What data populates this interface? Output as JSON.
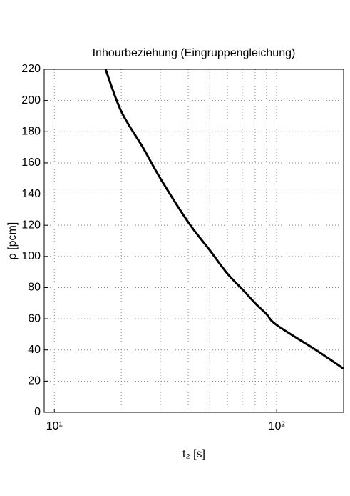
{
  "chart_data": {
    "type": "line",
    "title": "Inhourbeziehung (Eingruppengleichung)",
    "xlabel": "t₂ [s]",
    "ylabel": "ρ [pcm]",
    "xscale": "log",
    "xlim": [
      9,
      200
    ],
    "xticks": [
      {
        "value": 10,
        "label": "10¹"
      },
      {
        "value": 100,
        "label": "10²"
      }
    ],
    "xminorgrid": [
      20,
      30,
      40,
      50,
      60,
      70,
      80,
      90,
      200
    ],
    "ylim": [
      0,
      220
    ],
    "yticks": [
      0,
      20,
      40,
      60,
      80,
      100,
      120,
      140,
      160,
      180,
      200,
      220
    ],
    "grid": true,
    "series": [
      {
        "color": "#000000",
        "x": [
          17,
          20,
          25,
          30,
          40,
          50,
          60,
          70,
          80,
          90,
          100,
          150,
          200
        ],
        "values": [
          220,
          193,
          170,
          150,
          122,
          104,
          89,
          79,
          70,
          63,
          56,
          40,
          28
        ]
      }
    ]
  }
}
